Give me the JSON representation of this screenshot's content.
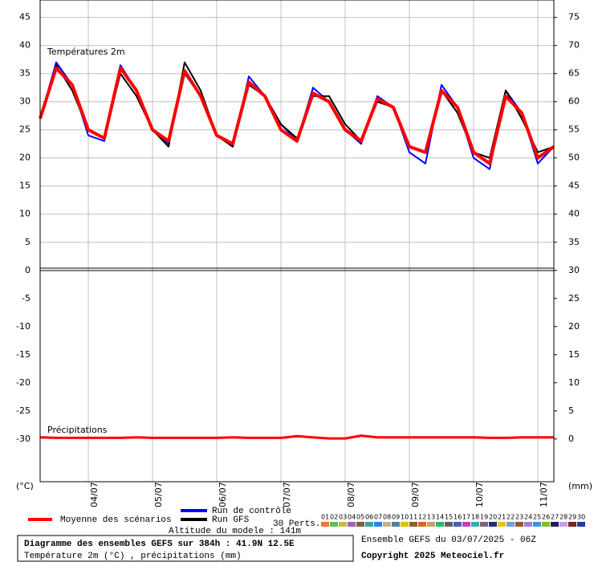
{
  "chart_data": {
    "type": "line",
    "temp_label": "Températures 2m",
    "precip_label": "Précipitations",
    "y_unit": "(°C)",
    "y2_unit": "(mm)",
    "x": [
      0,
      6,
      12,
      18,
      24,
      30,
      36,
      42,
      48,
      54,
      60,
      66,
      72,
      78,
      84,
      90,
      96,
      102,
      108,
      114,
      120,
      126,
      132,
      138,
      144,
      150,
      156,
      162,
      168,
      174,
      180,
      186,
      192
    ],
    "xlim": [
      0,
      192
    ],
    "xticks": [
      {
        "value": 18,
        "label": "04/07"
      },
      {
        "value": 42,
        "label": "05/07"
      },
      {
        "value": 66,
        "label": "06/07"
      },
      {
        "value": 90,
        "label": "07/07"
      },
      {
        "value": 114,
        "label": "08/07"
      },
      {
        "value": 138,
        "label": "09/07"
      },
      {
        "value": 162,
        "label": "10/07"
      },
      {
        "value": 186,
        "label": "11/07"
      }
    ],
    "ylim": [
      -37.6,
      48.1
    ],
    "yticks": [
      -30,
      -25,
      -20,
      -15,
      -10,
      -5,
      0,
      5,
      10,
      15,
      20,
      25,
      30,
      35,
      40,
      45
    ],
    "y2lim": [
      -7.6,
      78.1
    ],
    "y2ticks": [
      0,
      5,
      10,
      15,
      20,
      25,
      30,
      35,
      40,
      45,
      50,
      55,
      60,
      65,
      70,
      75
    ],
    "grid": true,
    "series": [
      {
        "name": "Moyenne des scénarios",
        "color": "#ff0000",
        "values": [
          27,
          36,
          33,
          25,
          23.5,
          36,
          32,
          25,
          23,
          35.5,
          31,
          24,
          22.5,
          33.5,
          31,
          25,
          23,
          31.5,
          30,
          25,
          23,
          30.5,
          29,
          22,
          21,
          32,
          29,
          21,
          19,
          31,
          28,
          20,
          22
        ]
      },
      {
        "name": "Run de contrôle",
        "color": "#0000ff",
        "values": [
          27,
          37,
          33,
          24,
          23,
          36.5,
          32,
          25,
          22.5,
          35,
          31,
          24,
          22,
          34.5,
          31,
          26,
          23,
          32.5,
          30,
          25,
          22.5,
          31,
          29,
          21,
          19,
          33,
          29,
          20,
          18,
          32,
          28,
          19,
          22
        ]
      },
      {
        "name": "Run GFS",
        "color": "#000000",
        "values": [
          27,
          36.5,
          32,
          25,
          23.5,
          35,
          31,
          25,
          22,
          37,
          32,
          24,
          22,
          33,
          31,
          26,
          23.5,
          31,
          31,
          26,
          23,
          30,
          29,
          22,
          21,
          32,
          28,
          21,
          20,
          32,
          27,
          21,
          22
        ]
      }
    ],
    "precipitation": {
      "color": "#ff0000",
      "axis": "y2",
      "values": [
        0.3,
        0.2,
        0.2,
        0.2,
        0.2,
        0.2,
        0.3,
        0.2,
        0.2,
        0.2,
        0.2,
        0.2,
        0.3,
        0.2,
        0.2,
        0.2,
        0.5,
        0.3,
        0.1,
        0.1,
        0.6,
        0.3,
        0.3,
        0.3,
        0.3,
        0.3,
        0.3,
        0.3,
        0.2,
        0.2,
        0.3,
        0.3,
        0.3
      ]
    },
    "perts_label": "30 Perts.",
    "perturbations": [
      {
        "label": "01",
        "color": "#f07830"
      },
      {
        "label": "02",
        "color": "#60c060"
      },
      {
        "label": "03",
        "color": "#c0c040"
      },
      {
        "label": "04",
        "color": "#a060c0"
      },
      {
        "label": "05",
        "color": "#806040"
      },
      {
        "label": "06",
        "color": "#40a0a0"
      },
      {
        "label": "07",
        "color": "#3080f0"
      },
      {
        "label": "08",
        "color": "#d0b080"
      },
      {
        "label": "09",
        "color": "#5080a0"
      },
      {
        "label": "10",
        "color": "#e0c000"
      },
      {
        "label": "11",
        "color": "#906030"
      },
      {
        "label": "12",
        "color": "#e06020"
      },
      {
        "label": "13",
        "color": "#c0a070"
      },
      {
        "label": "14",
        "color": "#20c060"
      },
      {
        "label": "15",
        "color": "#606060"
      },
      {
        "label": "16",
        "color": "#4060c0"
      },
      {
        "label": "17",
        "color": "#c040c0"
      },
      {
        "label": "18",
        "color": "#30b0b0"
      },
      {
        "label": "19",
        "color": "#806080"
      },
      {
        "label": "20",
        "color": "#203080"
      },
      {
        "label": "21",
        "color": "#f0c020"
      },
      {
        "label": "22",
        "color": "#70a0e0"
      },
      {
        "label": "23",
        "color": "#a05030"
      },
      {
        "label": "24",
        "color": "#a080e0"
      },
      {
        "label": "25",
        "color": "#4090f0"
      },
      {
        "label": "26",
        "color": "#80c020"
      },
      {
        "label": "27",
        "color": "#202060"
      },
      {
        "label": "28",
        "color": "#c0a0f0"
      },
      {
        "label": "29",
        "color": "#802020"
      },
      {
        "label": "30",
        "color": "#2040a0"
      }
    ],
    "altitude": "Altitude du modele : 141m",
    "box_title": "Diagramme des ensembles GEFS sur 384h : 41.9N 12.5E",
    "box_subtitle": "Température 2m (°C) , précipitations (mm)",
    "run_info": "Ensemble GEFS du 03/07/2025 - 06Z",
    "copyright": "Copyright 2025 Meteociel.fr"
  }
}
